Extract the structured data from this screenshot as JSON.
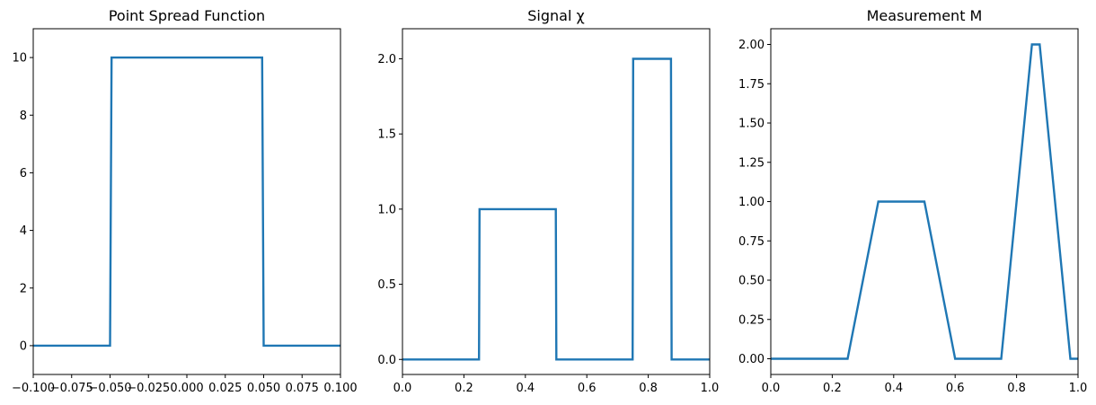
{
  "chart_data": [
    {
      "type": "line",
      "title": "Point Spread Function",
      "xlabel": "",
      "ylabel": "",
      "xlim": [
        -0.1,
        0.1
      ],
      "ylim": [
        -1,
        11
      ],
      "grid": false,
      "xticks": [
        -0.1,
        -0.075,
        -0.05,
        -0.025,
        0.0,
        0.025,
        0.05,
        0.075,
        0.1
      ],
      "xtick_labels": [
        "−0.100",
        "−0.075",
        "−0.050",
        "−0.025",
        "0.000",
        "0.025",
        "0.050",
        "0.075",
        "0.100"
      ],
      "yticks": [
        0,
        2,
        4,
        6,
        8,
        10
      ],
      "ytick_labels": [
        "0",
        "2",
        "4",
        "6",
        "8",
        "10"
      ],
      "series": [
        {
          "color": "#1f77b4",
          "x": [
            -0.1,
            -0.05,
            -0.049,
            0.049,
            0.05,
            0.1
          ],
          "y": [
            0,
            0,
            10,
            10,
            0,
            0
          ]
        }
      ]
    },
    {
      "type": "line",
      "title": "Signal χ",
      "xlabel": "",
      "ylabel": "",
      "xlim": [
        0,
        1
      ],
      "ylim": [
        -0.1,
        2.2
      ],
      "grid": false,
      "xticks": [
        0.0,
        0.2,
        0.4,
        0.6,
        0.8,
        1.0
      ],
      "xtick_labels": [
        "0.0",
        "0.2",
        "0.4",
        "0.6",
        "0.8",
        "1.0"
      ],
      "yticks": [
        0.0,
        0.5,
        1.0,
        1.5,
        2.0
      ],
      "ytick_labels": [
        "0.0",
        "0.5",
        "1.0",
        "1.5",
        "2.0"
      ],
      "series": [
        {
          "color": "#1f77b4",
          "x": [
            0,
            0.249,
            0.251,
            0.499,
            0.501,
            0.749,
            0.751,
            0.874,
            0.876,
            1.0
          ],
          "y": [
            0,
            0,
            1,
            1,
            0,
            0,
            2,
            2,
            0,
            0
          ]
        }
      ]
    },
    {
      "type": "line",
      "title": "Measurement M",
      "xlabel": "",
      "ylabel": "",
      "xlim": [
        0,
        1
      ],
      "ylim": [
        -0.1,
        2.1
      ],
      "grid": false,
      "xticks": [
        0.0,
        0.2,
        0.4,
        0.6,
        0.8,
        1.0
      ],
      "xtick_labels": [
        "0.0",
        "0.2",
        "0.4",
        "0.6",
        "0.8",
        "1.0"
      ],
      "yticks": [
        0.0,
        0.25,
        0.5,
        0.75,
        1.0,
        1.25,
        1.5,
        1.75,
        2.0
      ],
      "ytick_labels": [
        "0.00",
        "0.25",
        "0.50",
        "0.75",
        "1.00",
        "1.25",
        "1.50",
        "1.75",
        "2.00"
      ],
      "series": [
        {
          "color": "#1f77b4",
          "x": [
            0,
            0.25,
            0.35,
            0.5,
            0.6,
            0.75,
            0.85,
            0.875,
            0.975,
            1.0
          ],
          "y": [
            0,
            0,
            1,
            1,
            0,
            0,
            2,
            2,
            0,
            0
          ]
        }
      ]
    }
  ]
}
